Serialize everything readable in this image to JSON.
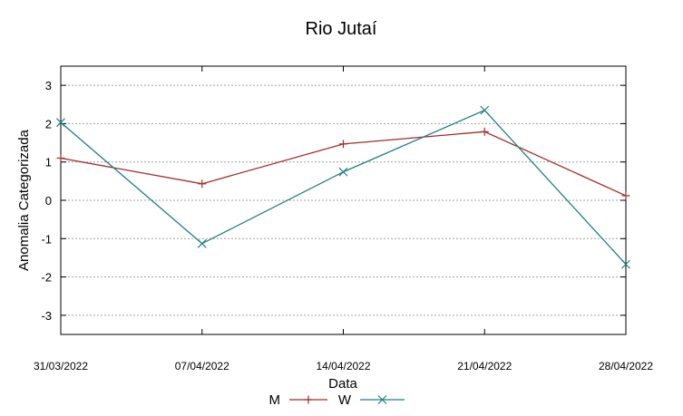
{
  "chart_data": {
    "type": "line",
    "title": "Rio Jutaí",
    "xlabel": "Data",
    "ylabel": "Anomalia Categorizada",
    "categories": [
      "31/03/2022",
      "07/04/2022",
      "14/04/2022",
      "21/04/2022",
      "28/04/2022"
    ],
    "ylim": [
      -3.5,
      3.5
    ],
    "yticks": [
      -3,
      -2,
      -1,
      0,
      1,
      2,
      3
    ],
    "grid": "horizontal-dashed",
    "legend_position": "bottom-center",
    "series": [
      {
        "name": "M",
        "color": "#a52a2a",
        "marker": "plus",
        "values": [
          1.1,
          0.43,
          1.47,
          1.79,
          0.12
        ]
      },
      {
        "name": "W",
        "color": "#1f8080",
        "marker": "x",
        "values": [
          2.03,
          -1.13,
          0.74,
          2.35,
          -1.67
        ]
      }
    ]
  }
}
